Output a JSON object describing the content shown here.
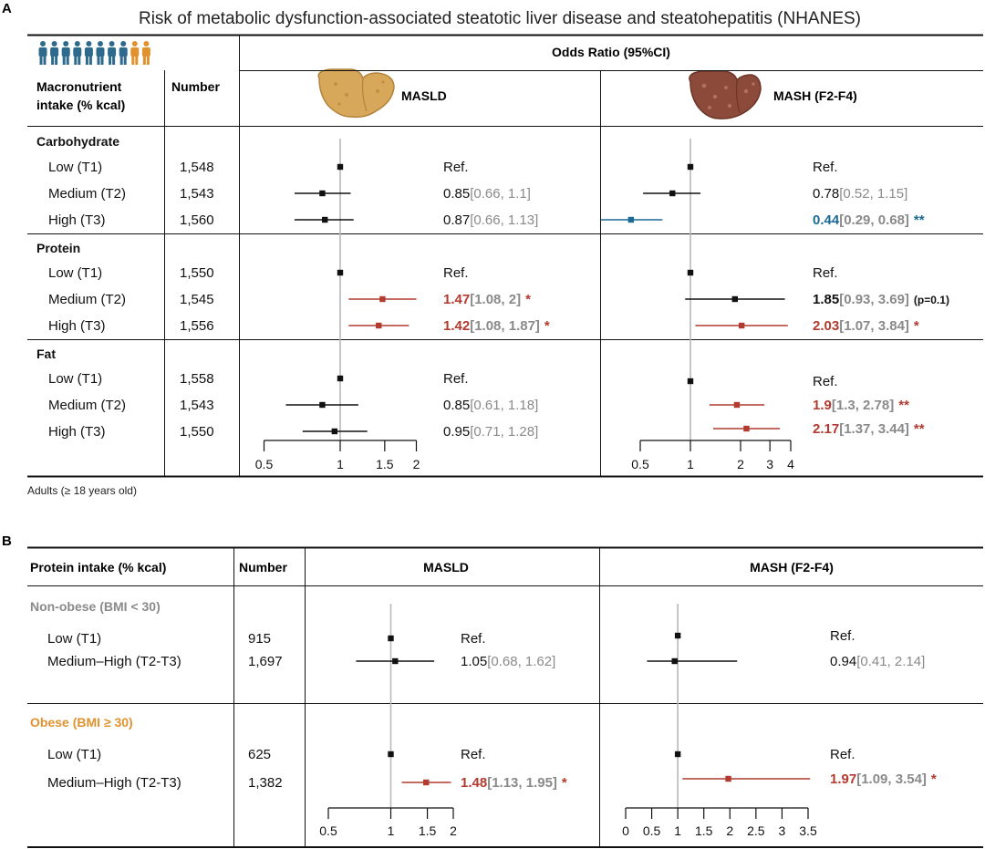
{
  "colors": {
    "black": "#111111",
    "red": "#b23a2e",
    "blue": "#1b6a97",
    "gray": "#8a8a8a",
    "orange": "#e0922f",
    "refline": "#b8b8b8",
    "person_blue": "#2e6a8e",
    "person_orange": "#e0922f",
    "liver_masld": "#d7a75a",
    "liver_mash": "#8c4a3a"
  },
  "panel_a": {
    "letter": "A",
    "title": "Risk of metabolic dysfunction-associated steatotic liver disease and steatohepatitis (NHANES)",
    "odds_header": "Odds Ratio (95%CI)",
    "col_macro": "Macronutrient intake (% kcal)",
    "col_macro_l1": "Macronutrient",
    "col_macro_l2": "intake (% kcal)",
    "col_number": "Number",
    "col_masld": "MASLD",
    "col_mash": "MASH (F2-F4)",
    "footnote": "Adults (≥ 18 years old)",
    "icons": [
      "person-icon",
      "person-icon",
      "person-icon",
      "person-icon",
      "person-icon",
      "person-icon",
      "person-icon",
      "person-icon",
      "person-icon",
      "person-icon"
    ]
  },
  "panel_b": {
    "letter": "B",
    "col_protein": "Protein intake (% kcal)",
    "col_number": "Number",
    "col_masld": "MASLD",
    "col_mash": "MASH (F2-F4)"
  },
  "chart_data": [
    {
      "type": "forest",
      "panel": "A",
      "subplot": "MASLD",
      "xscale": "log",
      "xlim": [
        0.5,
        2
      ],
      "ticks": [
        "0.5",
        "1",
        "1.5",
        "2"
      ],
      "reference": 1,
      "groups": [
        {
          "name": "Carbohydrate",
          "rows": [
            {
              "label": "Low (T1)",
              "n": "1,548",
              "or": 1,
              "lo": null,
              "hi": null,
              "text": "Ref.",
              "ci": "",
              "sig": "",
              "color": "black"
            },
            {
              "label": "Medium (T2)",
              "n": "1,543",
              "or": 0.85,
              "lo": 0.66,
              "hi": 1.1,
              "text": "0.85",
              "ci": "[0.66, 1.1]",
              "sig": "",
              "color": "black"
            },
            {
              "label": "High (T3)",
              "n": "1,560",
              "or": 0.87,
              "lo": 0.66,
              "hi": 1.13,
              "text": "0.87",
              "ci": "[0.66, 1.13]",
              "sig": "",
              "color": "black"
            }
          ]
        },
        {
          "name": "Protein",
          "rows": [
            {
              "label": "Low (T1)",
              "n": "1,550",
              "or": 1,
              "lo": null,
              "hi": null,
              "text": "Ref.",
              "ci": "",
              "sig": "",
              "color": "black"
            },
            {
              "label": "Medium (T2)",
              "n": "1,545",
              "or": 1.47,
              "lo": 1.08,
              "hi": 2,
              "text": "1.47",
              "ci": "[1.08, 2]",
              "sig": "*",
              "color": "red"
            },
            {
              "label": "High (T3)",
              "n": "1,556",
              "or": 1.42,
              "lo": 1.08,
              "hi": 1.87,
              "text": "1.42",
              "ci": "[1.08, 1.87]",
              "sig": "*",
              "color": "red"
            }
          ]
        },
        {
          "name": "Fat",
          "rows": [
            {
              "label": "Low (T1)",
              "n": "1,558",
              "or": 1,
              "lo": null,
              "hi": null,
              "text": "Ref.",
              "ci": "",
              "sig": "",
              "color": "black"
            },
            {
              "label": "Medium (T2)",
              "n": "1,543",
              "or": 0.85,
              "lo": 0.61,
              "hi": 1.18,
              "text": "0.85",
              "ci": "[0.61, 1.18]",
              "sig": "",
              "color": "black"
            },
            {
              "label": "High (T3)",
              "n": "1,550",
              "or": 0.95,
              "lo": 0.71,
              "hi": 1.28,
              "text": "0.95",
              "ci": "[0.71, 1.28]",
              "sig": "",
              "color": "black"
            }
          ]
        }
      ]
    },
    {
      "type": "forest",
      "panel": "A",
      "subplot": "MASH (F2-F4)",
      "xscale": "log",
      "xlim": [
        0.5,
        4
      ],
      "ticks": [
        "0.5",
        "1",
        "2",
        "3",
        "4"
      ],
      "reference": 1,
      "groups": [
        {
          "name": "Carbohydrate",
          "rows": [
            {
              "label": "Low (T1)",
              "or": 1,
              "lo": null,
              "hi": null,
              "text": "Ref.",
              "ci": "",
              "sig": "",
              "color": "black"
            },
            {
              "label": "Medium (T2)",
              "or": 0.78,
              "lo": 0.52,
              "hi": 1.15,
              "text": "0.78",
              "ci": "[0.52, 1.15]",
              "sig": "",
              "color": "black"
            },
            {
              "label": "High (T3)",
              "or": 0.44,
              "lo": 0.29,
              "hi": 0.68,
              "text": "0.44",
              "ci": "[0.29, 0.68]",
              "sig": "**",
              "color": "blue"
            }
          ]
        },
        {
          "name": "Protein",
          "rows": [
            {
              "label": "Low (T1)",
              "or": 1,
              "lo": null,
              "hi": null,
              "text": "Ref.",
              "ci": "",
              "sig": "",
              "color": "black"
            },
            {
              "label": "Medium (T2)",
              "or": 1.85,
              "lo": 0.93,
              "hi": 3.69,
              "text": "1.85",
              "ci": "[0.93, 3.69]",
              "sig": "(p=0.1)",
              "color": "black",
              "bold": true
            },
            {
              "label": "High (T3)",
              "or": 2.03,
              "lo": 1.07,
              "hi": 3.84,
              "text": "2.03",
              "ci": "[1.07, 3.84]",
              "sig": "*",
              "color": "red"
            }
          ]
        },
        {
          "name": "Fat",
          "rows": [
            {
              "label": "Low (T1)",
              "or": 1,
              "lo": null,
              "hi": null,
              "text": "Ref.",
              "ci": "",
              "sig": "",
              "color": "black"
            },
            {
              "label": "Medium (T2)",
              "or": 1.9,
              "lo": 1.3,
              "hi": 2.78,
              "text": "1.9",
              "ci": "[1.3, 2.78]",
              "sig": "**",
              "color": "red"
            },
            {
              "label": "High (T3)",
              "or": 2.17,
              "lo": 1.37,
              "hi": 3.44,
              "text": "2.17",
              "ci": "[1.37, 3.44]",
              "sig": "**",
              "color": "red"
            }
          ]
        }
      ]
    },
    {
      "type": "forest",
      "panel": "B",
      "subplot": "MASLD",
      "xscale": "log",
      "xlim": [
        0.5,
        2
      ],
      "ticks": [
        "0.5",
        "1",
        "1.5",
        "2"
      ],
      "reference": 1,
      "groups": [
        {
          "name": "Non-obese (BMI < 30)",
          "color": "gray",
          "rows": [
            {
              "label": "Low (T1)",
              "n": "915",
              "or": 1,
              "lo": null,
              "hi": null,
              "text": "Ref.",
              "ci": "",
              "sig": "",
              "color": "black"
            },
            {
              "label": "Medium–High (T2-T3)",
              "n": "1,697",
              "or": 1.05,
              "lo": 0.68,
              "hi": 1.62,
              "text": "1.05",
              "ci": "[0.68, 1.62]",
              "sig": "",
              "color": "black"
            }
          ]
        },
        {
          "name": "Obese (BMI ≥ 30)",
          "color": "orange",
          "rows": [
            {
              "label": "Low (T1)",
              "n": "625",
              "or": 1,
              "lo": null,
              "hi": null,
              "text": "Ref.",
              "ci": "",
              "sig": "",
              "color": "black"
            },
            {
              "label": "Medium–High (T2-T3)",
              "n": "1,382",
              "or": 1.48,
              "lo": 1.13,
              "hi": 1.95,
              "text": "1.48",
              "ci": "[1.13, 1.95]",
              "sig": "*",
              "color": "red"
            }
          ]
        }
      ]
    },
    {
      "type": "forest",
      "panel": "B",
      "subplot": "MASH (F2-F4)",
      "xscale": "linear",
      "xlim": [
        0,
        3.5
      ],
      "ticks": [
        "0",
        "0.5",
        "1",
        "1.5",
        "2",
        "2.5",
        "3",
        "3.5"
      ],
      "reference": 1,
      "groups": [
        {
          "name": "Non-obese (BMI < 30)",
          "color": "gray",
          "rows": [
            {
              "label": "Low (T1)",
              "or": 1,
              "lo": null,
              "hi": null,
              "text": "Ref.",
              "ci": "",
              "sig": "",
              "color": "black"
            },
            {
              "label": "Medium–High (T2-T3)",
              "or": 0.94,
              "lo": 0.41,
              "hi": 2.14,
              "text": "0.94",
              "ci": "[0.41, 2.14]",
              "sig": "",
              "color": "black"
            }
          ]
        },
        {
          "name": "Obese (BMI ≥ 30)",
          "color": "orange",
          "rows": [
            {
              "label": "Low (T1)",
              "or": 1,
              "lo": null,
              "hi": null,
              "text": "Ref.",
              "ci": "",
              "sig": "",
              "color": "black"
            },
            {
              "label": "Medium–High (T2-T3)",
              "or": 1.97,
              "lo": 1.09,
              "hi": 3.54,
              "text": "1.97",
              "ci": "[1.09, 3.54]",
              "sig": "*",
              "color": "red"
            }
          ]
        }
      ]
    }
  ]
}
